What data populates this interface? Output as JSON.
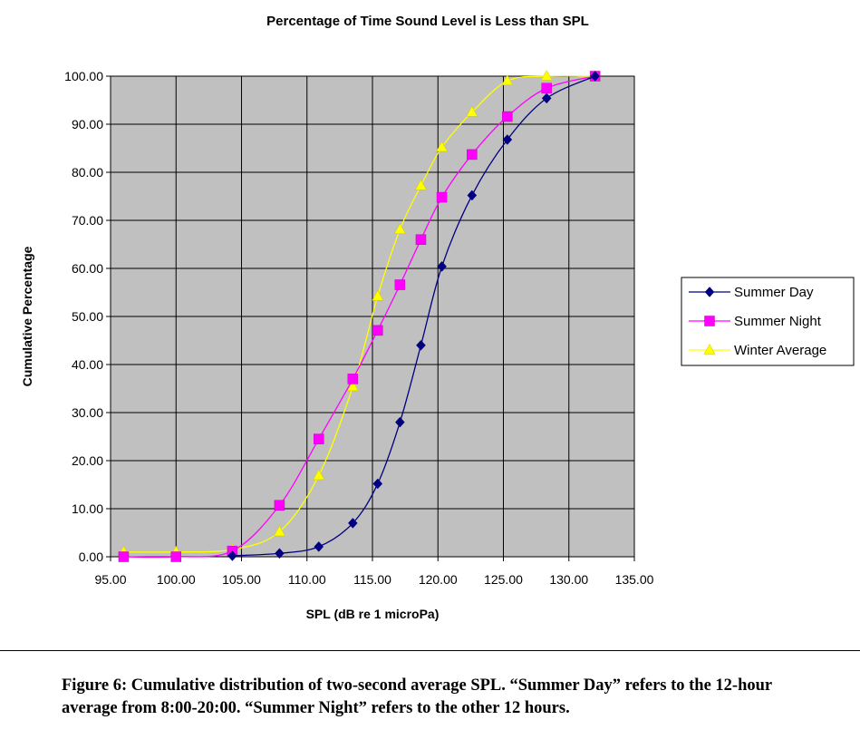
{
  "chart_data": {
    "type": "line",
    "title": "Percentage of Time Sound Level is Less than SPL",
    "xlabel": "SPL (dB re 1 microPa)",
    "ylabel": "Cumulative  Percentage",
    "xlim": [
      95,
      135
    ],
    "ylim": [
      0,
      100
    ],
    "x_ticks": [
      "95.00",
      "100.00",
      "105.00",
      "110.00",
      "115.00",
      "120.00",
      "125.00",
      "130.00",
      "135.00"
    ],
    "y_ticks": [
      "0.00",
      "10.00",
      "20.00",
      "30.00",
      "40.00",
      "50.00",
      "60.00",
      "70.00",
      "80.00",
      "90.00",
      "100.00"
    ],
    "grid": true,
    "legend_position": "right",
    "plot_background": "#C0C0C0",
    "series": [
      {
        "name": "Summer Day",
        "color": "#000080",
        "marker": "diamond",
        "points": [
          [
            104.3,
            0.2
          ],
          [
            107.9,
            0.7
          ],
          [
            110.9,
            2.1
          ],
          [
            113.5,
            7.0
          ],
          [
            115.4,
            15.2
          ],
          [
            117.1,
            28.0
          ],
          [
            118.7,
            44.0
          ],
          [
            120.3,
            60.4
          ],
          [
            122.6,
            75.2
          ],
          [
            125.3,
            86.8
          ],
          [
            128.3,
            95.4
          ],
          [
            132.0,
            100.0
          ]
        ]
      },
      {
        "name": "Summer Night",
        "color": "#FF00FF",
        "marker": "square",
        "points": [
          [
            96.0,
            0.0
          ],
          [
            100.0,
            0.0
          ],
          [
            104.3,
            1.2
          ],
          [
            107.9,
            10.7
          ],
          [
            110.9,
            24.5
          ],
          [
            113.5,
            37.0
          ],
          [
            115.4,
            47.1
          ],
          [
            117.1,
            56.6
          ],
          [
            118.7,
            66.0
          ],
          [
            120.3,
            74.8
          ],
          [
            122.6,
            83.7
          ],
          [
            125.3,
            91.6
          ],
          [
            128.3,
            97.5
          ],
          [
            132.0,
            100.0
          ]
        ]
      },
      {
        "name": "Winter Average",
        "color": "#FFFF00",
        "marker": "triangle",
        "points": [
          [
            96.0,
            1.0
          ],
          [
            100.0,
            1.0
          ],
          [
            104.3,
            1.5
          ],
          [
            107.9,
            5.2
          ],
          [
            110.9,
            16.9
          ],
          [
            113.5,
            35.4
          ],
          [
            115.4,
            54.2
          ],
          [
            117.1,
            68.1
          ],
          [
            118.7,
            77.2
          ],
          [
            120.3,
            85.2
          ],
          [
            122.6,
            92.5
          ],
          [
            125.3,
            99.0
          ],
          [
            128.3,
            100.0
          ],
          [
            132.0,
            100.0
          ]
        ]
      }
    ]
  },
  "caption": "Figure 6: Cumulative distribution of two-second average SPL.  “Summer Day” refers to the 12-hour average from 8:00-20:00.  “Summer Night” refers to the other 12 hours."
}
